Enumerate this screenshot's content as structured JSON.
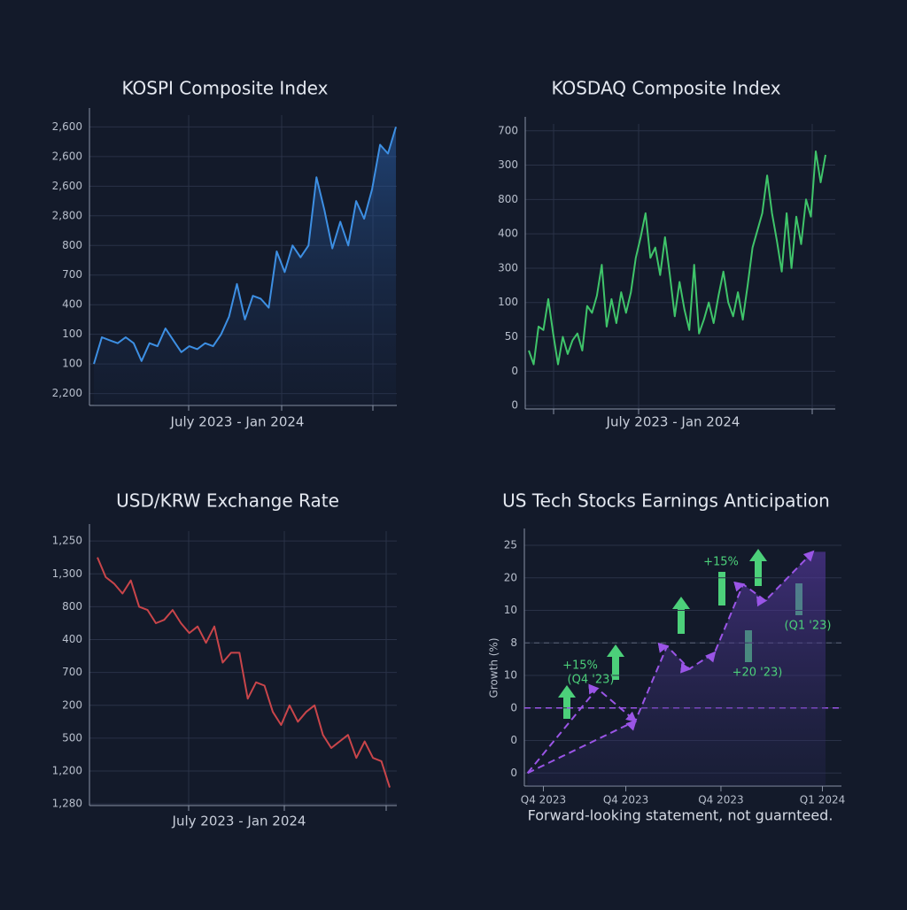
{
  "chart_data": [
    {
      "type": "line",
      "title": "KOSPI Composite Index",
      "xlabel": "July 2023 - Jan 2024",
      "grid": true,
      "area": true,
      "ylim": [
        -0.4,
        9.4
      ],
      "yticks": [
        {
          "value": 0,
          "label": "2,200"
        },
        {
          "value": 1,
          "label": "100"
        },
        {
          "value": 2,
          "label": "100"
        },
        {
          "value": 3,
          "label": "400"
        },
        {
          "value": 4,
          "label": "700"
        },
        {
          "value": 5,
          "label": "800"
        },
        {
          "value": 6,
          "label": "2,800"
        },
        {
          "value": 7,
          "label": "2,600"
        },
        {
          "value": 8,
          "label": "2,600"
        },
        {
          "value": 9,
          "label": "2,600"
        }
      ],
      "series": [
        {
          "color": "#3d8fe3",
          "values": [
            1.0,
            1.9,
            1.8,
            1.7,
            1.9,
            1.7,
            1.1,
            1.7,
            1.6,
            2.2,
            1.8,
            1.4,
            1.6,
            1.5,
            1.7,
            1.6,
            2.0,
            2.6,
            3.7,
            2.5,
            3.3,
            3.2,
            2.9,
            4.8,
            4.1,
            5.0,
            4.6,
            5.0,
            7.3,
            6.2,
            4.9,
            5.8,
            5.0,
            6.5,
            5.9,
            6.9,
            8.4,
            8.1,
            9.0
          ]
        }
      ]
    },
    {
      "type": "line",
      "title": "KOSDAQ Composite Index",
      "xlabel": "July 2023 - Jan 2024",
      "grid": true,
      "ylim": [
        -0.1,
        8.2
      ],
      "yticks": [
        {
          "value": 0,
          "label": "0"
        },
        {
          "value": 1,
          "label": "0"
        },
        {
          "value": 2,
          "label": "50"
        },
        {
          "value": 3,
          "label": "100"
        },
        {
          "value": 4,
          "label": "300"
        },
        {
          "value": 5,
          "label": "400"
        },
        {
          "value": 6,
          "label": "800"
        },
        {
          "value": 7,
          "label": "300"
        },
        {
          "value": 8,
          "label": "700"
        }
      ],
      "series": [
        {
          "color": "#3fc46a",
          "values": [
            1.6,
            1.2,
            2.3,
            2.2,
            3.1,
            2.1,
            1.2,
            2.0,
            1.5,
            1.9,
            2.1,
            1.6,
            2.9,
            2.7,
            3.2,
            4.1,
            2.3,
            3.1,
            2.4,
            3.3,
            2.7,
            3.3,
            4.3,
            4.9,
            5.6,
            4.3,
            4.6,
            3.8,
            4.9,
            3.8,
            2.6,
            3.6,
            2.8,
            2.2,
            4.1,
            2.1,
            2.5,
            3.0,
            2.4,
            3.2,
            3.9,
            3.0,
            2.6,
            3.3,
            2.5,
            3.5,
            4.6,
            5.1,
            5.6,
            6.7,
            5.6,
            4.8,
            3.9,
            5.6,
            4.0,
            5.5,
            4.7,
            6.0,
            5.5,
            7.4,
            6.5,
            7.3
          ]
        }
      ]
    },
    {
      "type": "line",
      "title": "USD/KRW Exchange Rate",
      "xlabel": "July 2023 - Jan 2024",
      "grid": true,
      "ylim": [
        -0.05,
        8.3
      ],
      "yticks": [
        {
          "value": 0,
          "label": "1,280"
        },
        {
          "value": 1,
          "label": "1,200"
        },
        {
          "value": 2,
          "label": "500"
        },
        {
          "value": 3,
          "label": "200"
        },
        {
          "value": 4,
          "label": "700"
        },
        {
          "value": 5,
          "label": "400"
        },
        {
          "value": 6,
          "label": "800"
        },
        {
          "value": 7,
          "label": "1,300"
        },
        {
          "value": 8,
          "label": "1,250"
        }
      ],
      "series": [
        {
          "color": "#c9454a",
          "values": [
            7.5,
            6.9,
            6.7,
            6.4,
            6.8,
            6.0,
            5.9,
            5.5,
            5.6,
            5.9,
            5.5,
            5.2,
            5.4,
            4.9,
            5.4,
            4.3,
            4.6,
            4.6,
            3.2,
            3.7,
            3.6,
            2.8,
            2.4,
            3.0,
            2.5,
            2.8,
            3.0,
            2.1,
            1.7,
            1.9,
            2.1,
            1.4,
            1.9,
            1.4,
            1.3,
            0.5
          ]
        }
      ]
    },
    {
      "type": "line",
      "title": "US Tech Stocks Earnings Anticipation",
      "ylabel": "Growth (%)",
      "grid": true,
      "note": "Forward-looking statement, not guarnteed.",
      "xlim": [
        0,
        10
      ],
      "xticks": [
        {
          "value": 0.6,
          "label": "Q4 2023"
        },
        {
          "value": 3.2,
          "label": "Q4 2023"
        },
        {
          "value": 6.2,
          "label": "Q4 2023"
        },
        {
          "value": 9.4,
          "label": "Q1 2024"
        }
      ],
      "ylim": [
        -0.4,
        7.3
      ],
      "yticks": [
        {
          "value": 0,
          "label": "0"
        },
        {
          "value": 1,
          "label": "0"
        },
        {
          "value": 2,
          "label": "0"
        },
        {
          "value": 3,
          "label": "10"
        },
        {
          "value": 4,
          "label": "8"
        },
        {
          "value": 5,
          "label": "10"
        },
        {
          "value": 6,
          "label": "20"
        },
        {
          "value": 7,
          "label": "25"
        }
      ],
      "series": [
        {
          "color": "#9a55e6",
          "x": [
            0.1,
            2.3,
            3.5
          ],
          "values": [
            0.0,
            2.6,
            1.6
          ]
        },
        {
          "color": "#9a55e6",
          "x": [
            0.1,
            3.5,
            4.5,
            5.2,
            6.0,
            6.9,
            7.6,
            9.1
          ],
          "values": [
            0.0,
            1.6,
            3.9,
            3.2,
            3.7,
            5.8,
            5.3,
            6.8
          ]
        }
      ],
      "annotations": [
        "+15%",
        "(Q4 '23)",
        "+15%",
        "(Q1 '23)",
        "+20 '23)"
      ]
    }
  ]
}
